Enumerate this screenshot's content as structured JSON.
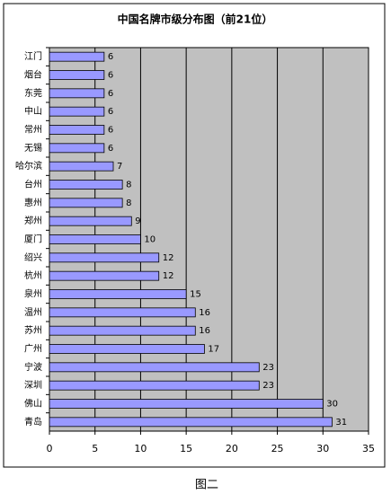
{
  "chart_data": {
    "type": "bar",
    "orientation": "horizontal",
    "title": "中国名牌市级分布图（前21位）",
    "categories": [
      "江门",
      "烟台",
      "东莞",
      "中山",
      "常州",
      "无锡",
      "哈尔滨",
      "台州",
      "惠州",
      "郑州",
      "厦门",
      "绍兴",
      "杭州",
      "泉州",
      "温州",
      "苏州",
      "广州",
      "宁波",
      "深圳",
      "佛山",
      "青岛"
    ],
    "values": [
      6,
      6,
      6,
      6,
      6,
      6,
      7,
      8,
      8,
      9,
      10,
      12,
      12,
      15,
      16,
      16,
      17,
      23,
      23,
      30,
      31
    ],
    "color": "#9999ff",
    "plot_background": "#c0c0c0",
    "xlim": [
      0,
      35
    ],
    "xticks": [
      0,
      5,
      10,
      15,
      20,
      25,
      30,
      35
    ],
    "grid": true
  },
  "caption": "图二"
}
